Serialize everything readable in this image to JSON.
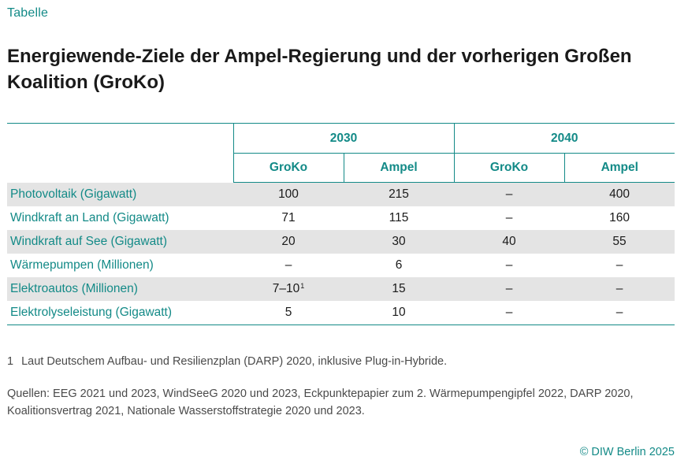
{
  "kicker": "Tabelle",
  "title": "Energiewende-Ziele der Ampel-Regierung und der vorherigen Großen Koalition (GroKo)",
  "table": {
    "years": [
      "2030",
      "2040"
    ],
    "subheaders": [
      "GroKo",
      "Ampel",
      "GroKo",
      "Ampel"
    ],
    "rows": [
      {
        "label": "Photovoltaik (Gigawatt)",
        "values": [
          "100",
          "215",
          "–",
          "400"
        ]
      },
      {
        "label": "Windkraft an Land (Gigawatt)",
        "values": [
          "71",
          "115",
          "–",
          "160"
        ]
      },
      {
        "label": "Windkraft auf See (Gigawatt)",
        "values": [
          "20",
          "30",
          "40",
          "55"
        ]
      },
      {
        "label": "Wärmepumpen (Millionen)",
        "values": [
          "–",
          "6",
          "–",
          "–"
        ]
      },
      {
        "label": "Elektroautos (Millionen)",
        "values": [
          "7–10",
          "15",
          "–",
          "–"
        ],
        "footnote_mark": "1"
      },
      {
        "label": "Elektrolyseleistung (Gigawatt)",
        "values": [
          "5",
          "10",
          "–",
          "–"
        ]
      }
    ]
  },
  "footnote": {
    "number": "1",
    "text": "Laut Deutschem Aufbau- und Resilienzplan (DARP) 2020, inklusive Plug-in-Hybride."
  },
  "sources": "Quellen: EEG 2021 und 2023, WindSeeG 2020 und 2023, Eckpunktepapier zum 2. Wärmepumpengipfel 2022, DARP 2020, Koalitionsvertrag 2021, Nationale Wasserstoffstrategie 2020 und 2023.",
  "copyright": "© DIW Berlin 2025",
  "colors": {
    "accent": "#138a87",
    "stripe": "#e4e4e4",
    "text": "#1a1a1a",
    "muted": "#4a4a4a"
  }
}
